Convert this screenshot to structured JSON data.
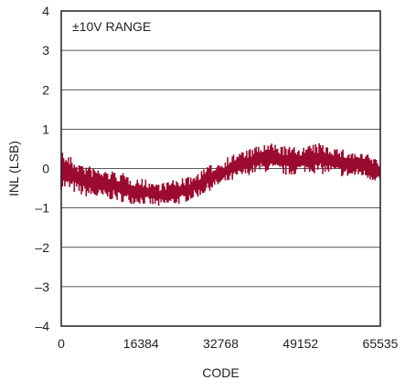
{
  "chart_data": {
    "type": "line",
    "xlabel": "CODE",
    "ylabel": "INL (LSB)",
    "annotation": "±10V RANGE",
    "xlim": [
      0,
      65535
    ],
    "ylim": [
      -4,
      4
    ],
    "x_ticks": [
      0,
      16384,
      32768,
      49152,
      65535
    ],
    "x_tick_labels": [
      "0",
      "16384",
      "32768",
      "49152",
      "65535"
    ],
    "y_ticks": [
      -4,
      -3,
      -2,
      -1,
      0,
      1,
      2,
      3,
      4
    ],
    "y_tick_labels": [
      "–4",
      "–3",
      "–2",
      "–1",
      "0",
      "1",
      "2",
      "3",
      "4"
    ],
    "grid": "horizontal",
    "series": [
      {
        "color": "#9b0a2f",
        "style": "noisy band",
        "x": [
          0,
          2048,
          4096,
          6144,
          8192,
          10240,
          12288,
          14336,
          16384,
          18432,
          20480,
          22528,
          24576,
          26624,
          28672,
          30720,
          32768,
          34816,
          36864,
          38912,
          40960,
          43008,
          45056,
          47104,
          49152,
          51200,
          53248,
          55296,
          57344,
          59392,
          61440,
          63488,
          65535
        ],
        "y_min": [
          -0.55,
          -0.6,
          -0.7,
          -0.75,
          -0.8,
          -0.8,
          -0.85,
          -0.9,
          -0.9,
          -0.95,
          -1.0,
          -0.95,
          -0.9,
          -0.8,
          -0.7,
          -0.55,
          -0.45,
          -0.35,
          -0.25,
          -0.15,
          -0.1,
          -0.1,
          -0.15,
          -0.2,
          -0.1,
          -0.1,
          -0.15,
          -0.15,
          -0.2,
          -0.25,
          -0.2,
          -0.3,
          -0.35
        ],
        "y_max": [
          0.5,
          0.3,
          0.15,
          0.05,
          0.0,
          -0.05,
          -0.1,
          -0.2,
          -0.25,
          -0.3,
          -0.35,
          -0.3,
          -0.25,
          -0.2,
          -0.05,
          0.1,
          0.2,
          0.35,
          0.45,
          0.5,
          0.6,
          0.65,
          0.6,
          0.55,
          0.55,
          0.6,
          0.65,
          0.6,
          0.5,
          0.45,
          0.4,
          0.35,
          0.2
        ]
      }
    ]
  }
}
